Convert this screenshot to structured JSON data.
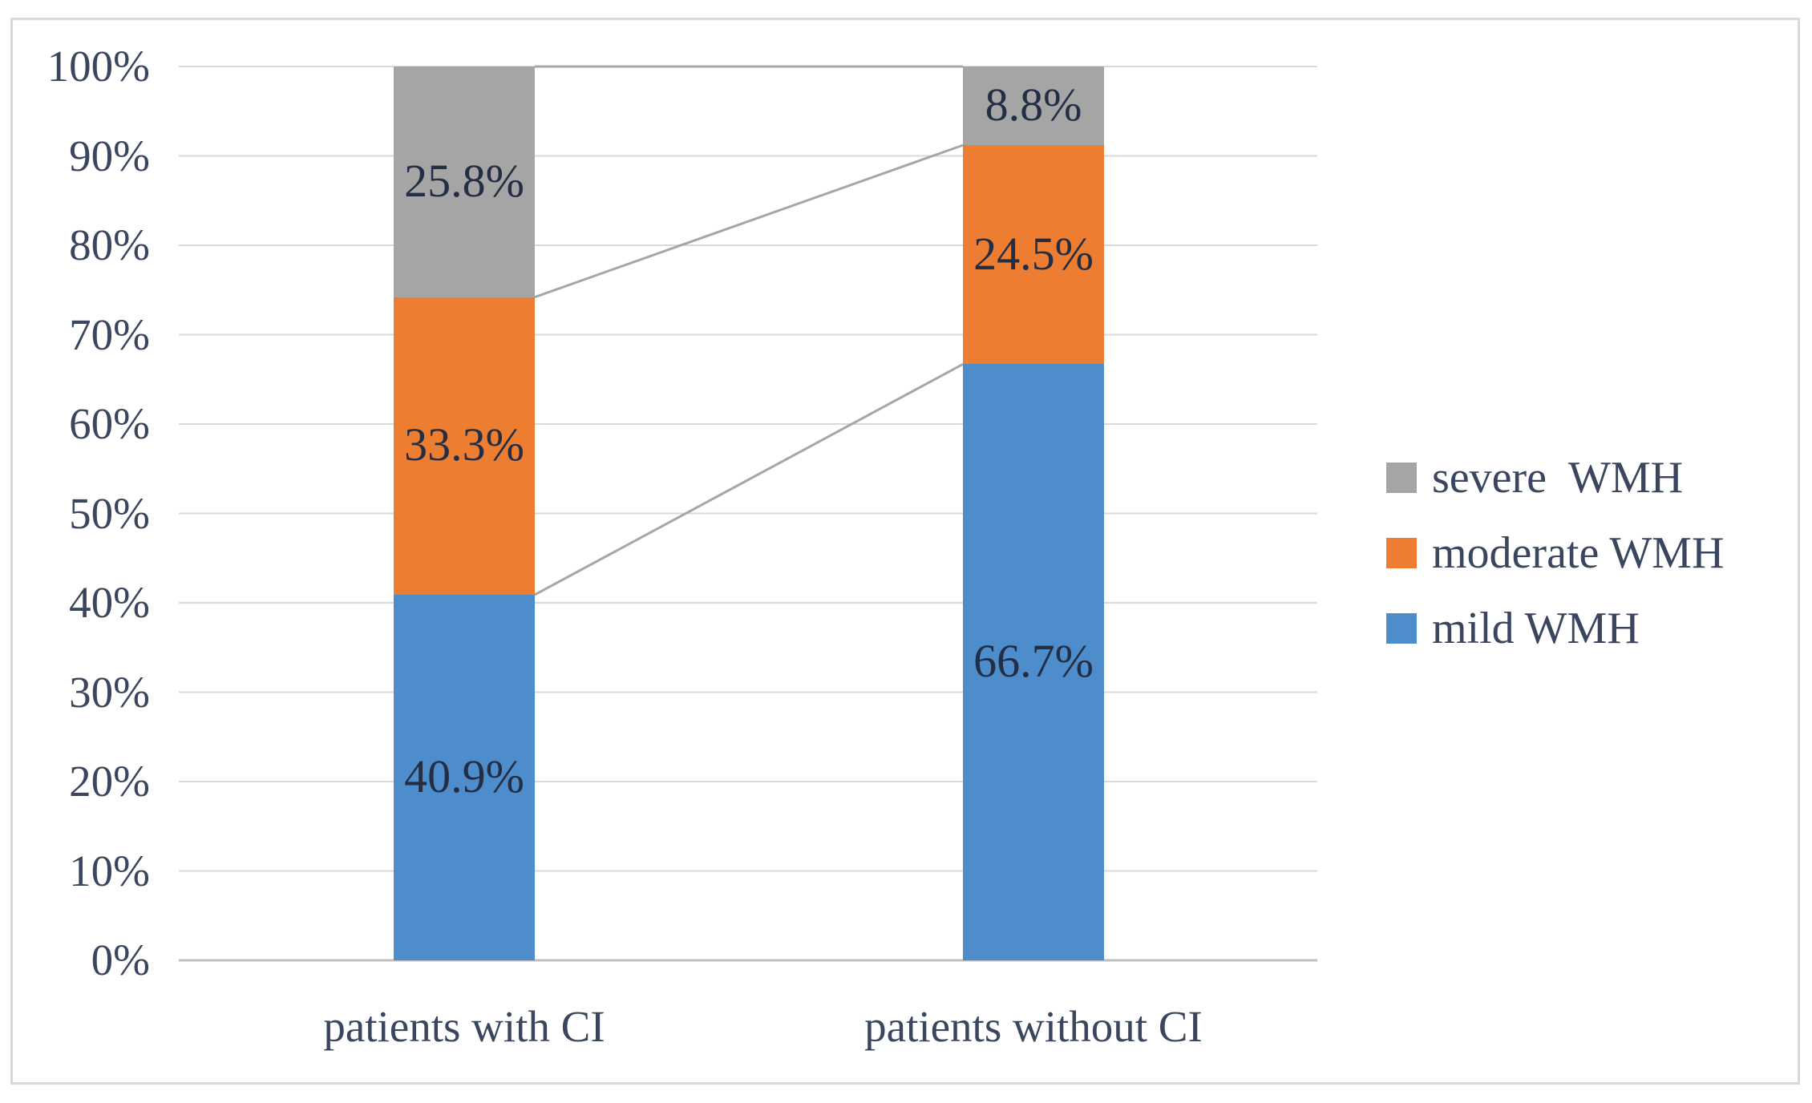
{
  "figure": {
    "background": "#ffffff",
    "frame_color": "#d9d9d9"
  },
  "chart_data": {
    "type": "bar",
    "variant": "stacked-100-percent-column",
    "title": "",
    "xlabel": "",
    "ylabel": "",
    "categories": [
      "patients with CI",
      "patients without CI"
    ],
    "series": [
      {
        "name": "mild WMH",
        "color": "#4e8dcb",
        "values": [
          40.9,
          66.7
        ],
        "labels": [
          "40.9%",
          "66.7%"
        ]
      },
      {
        "name": "moderate WMH",
        "color": "#ed7d31",
        "values": [
          33.3,
          24.5
        ],
        "labels": [
          "33.3%",
          "24.5%"
        ]
      },
      {
        "name": "severe  WMH",
        "color": "#a5a5a5",
        "values": [
          25.8,
          8.8
        ],
        "labels": [
          "25.8%",
          "8.8%"
        ]
      }
    ],
    "legend_order_top_to_bottom": [
      "severe  WMH",
      "moderate WMH",
      "mild WMH"
    ],
    "legend_position": "right",
    "ylim": [
      0,
      100
    ],
    "yticks": [
      {
        "value": 0,
        "label": "0%"
      },
      {
        "value": 10,
        "label": "10%"
      },
      {
        "value": 20,
        "label": "20%"
      },
      {
        "value": 30,
        "label": "30%"
      },
      {
        "value": 40,
        "label": "40%"
      },
      {
        "value": 50,
        "label": "50%"
      },
      {
        "value": 60,
        "label": "60%"
      },
      {
        "value": 70,
        "label": "70%"
      },
      {
        "value": 80,
        "label": "80%"
      },
      {
        "value": 90,
        "label": "90%"
      },
      {
        "value": 100,
        "label": "100%"
      }
    ],
    "grid": true,
    "connectors_between_bars": true,
    "colors": {
      "gridline": "#d9d9d9",
      "axis_line": "#bfbfbf",
      "connector": "#a6a6a6",
      "axis_text": "#39465e",
      "data_label_text": "#232e45"
    }
  }
}
